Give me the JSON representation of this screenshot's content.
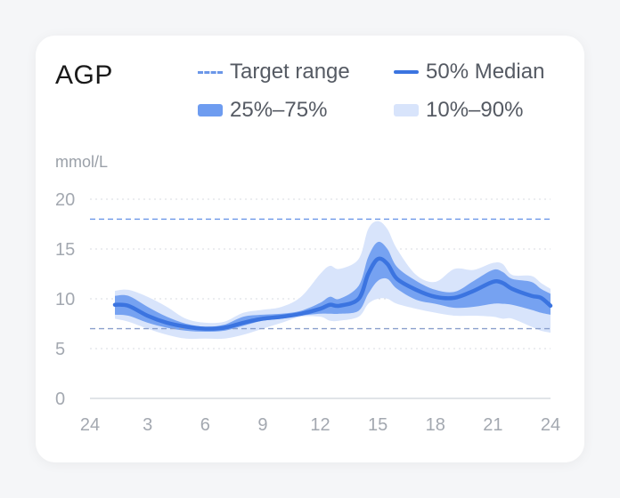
{
  "card": {
    "title": "AGP",
    "unit": "mmol/L"
  },
  "legend": {
    "target": "Target range",
    "median": "50% Median",
    "iqr": "25%–75%",
    "extremes": "10%–90%"
  },
  "colors": {
    "median": "#3b74e0",
    "iqr_band": "#6e9cf0",
    "outer_band": "#d8e4fb",
    "target_line": "#6b97e8",
    "low_line": "#8a9fcc"
  },
  "chart_data": {
    "type": "area",
    "title": "AGP",
    "ylabel": "mmol/L",
    "ylim": [
      0,
      20
    ],
    "y_ticks": [
      0,
      5,
      10,
      15,
      20
    ],
    "xlim": [
      0,
      24
    ],
    "x_ticks": [
      0,
      3,
      6,
      9,
      12,
      15,
      18,
      21,
      24
    ],
    "x_tick_labels": [
      "24",
      "3",
      "6",
      "9",
      "12",
      "15",
      "18",
      "21",
      "24"
    ],
    "target_lines": [
      18,
      7
    ],
    "grid": "dotted horizontal",
    "x": [
      1.3,
      2,
      3,
      4,
      5,
      6,
      7,
      8,
      9,
      10,
      11,
      12,
      12.5,
      13,
      14,
      14.5,
      15,
      15.5,
      16,
      17,
      18,
      19,
      20,
      21,
      21.5,
      22,
      23,
      23.5,
      24
    ],
    "series": [
      {
        "name": "10%–90%",
        "role": "p10",
        "values": [
          8.0,
          7.7,
          7.0,
          6.4,
          6.0,
          6.0,
          6.0,
          6.4,
          7.0,
          7.6,
          8.2,
          8.2,
          7.8,
          7.8,
          8.2,
          9.5,
          10.0,
          10.0,
          9.5,
          9.0,
          8.6,
          8.3,
          8.3,
          8.2,
          8.0,
          8.0,
          7.2,
          6.8,
          6.6
        ]
      },
      {
        "name": "25%–75%",
        "role": "p25",
        "values": [
          8.4,
          8.3,
          7.6,
          7.1,
          6.8,
          6.7,
          6.8,
          7.3,
          7.8,
          8.0,
          8.3,
          8.5,
          8.5,
          8.5,
          8.8,
          10.5,
          11.8,
          12.0,
          11.0,
          9.9,
          9.5,
          9.1,
          9.2,
          9.5,
          9.5,
          9.4,
          8.9,
          8.6,
          8.4
        ]
      },
      {
        "name": "50% Median",
        "role": "p50",
        "values": [
          9.4,
          9.3,
          8.3,
          7.6,
          7.2,
          7.0,
          7.1,
          7.6,
          8.0,
          8.2,
          8.5,
          9.0,
          9.4,
          9.3,
          10.0,
          12.5,
          14.0,
          13.5,
          12.0,
          10.9,
          10.2,
          10.1,
          10.8,
          11.7,
          11.6,
          11.0,
          10.3,
          10.1,
          9.3
        ]
      },
      {
        "name": "25%–75%",
        "role": "p75",
        "values": [
          10.3,
          10.3,
          9.2,
          8.2,
          7.5,
          7.2,
          7.4,
          8.2,
          8.4,
          8.5,
          8.8,
          9.6,
          10.2,
          10.0,
          11.3,
          14.2,
          15.7,
          15.0,
          13.2,
          11.8,
          10.9,
          10.7,
          11.8,
          12.9,
          12.7,
          12.0,
          11.7,
          11.0,
          10.5
        ]
      },
      {
        "name": "10%–90%",
        "role": "p90",
        "values": [
          10.8,
          10.9,
          10.2,
          9.2,
          8.0,
          7.6,
          7.7,
          8.6,
          8.9,
          9.2,
          10.2,
          12.5,
          13.3,
          13.0,
          14.0,
          17.0,
          17.8,
          17.0,
          15.0,
          12.4,
          11.7,
          13.0,
          12.9,
          13.6,
          13.5,
          12.4,
          12.3,
          11.6,
          11.0
        ]
      }
    ]
  }
}
